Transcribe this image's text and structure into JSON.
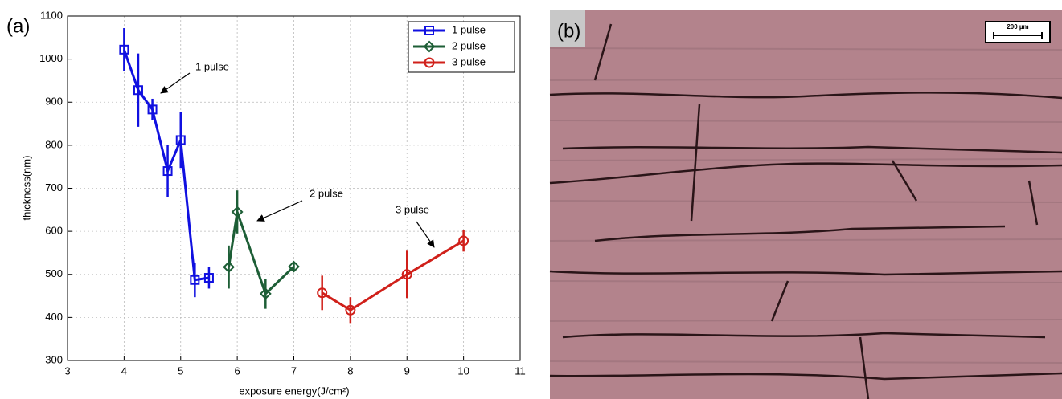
{
  "chart_data": {
    "type": "line",
    "panel_label": "(a)",
    "xlabel": "exposure energy(J/cm²)",
    "ylabel": "thickness(nm)",
    "xlim": [
      3,
      11
    ],
    "xticks": [
      3,
      4,
      5,
      6,
      7,
      8,
      9,
      10,
      11
    ],
    "ylim": [
      300,
      1100
    ],
    "yticks": [
      300,
      400,
      500,
      600,
      700,
      800,
      900,
      1000,
      1100
    ],
    "grid": true,
    "legend": "upper right",
    "series": [
      {
        "name": "1 pulse",
        "color": "#1010e0",
        "marker": "square",
        "x": [
          4,
          4.25,
          4.5,
          4.77,
          5,
          5.25,
          5.5
        ],
        "values": [
          1022,
          928,
          883,
          740,
          812,
          487,
          492
        ],
        "errors": [
          50,
          85,
          25,
          60,
          65,
          40,
          25
        ]
      },
      {
        "name": "2 pulse",
        "color": "#1d5e36",
        "marker": "diamond",
        "x": [
          5.85,
          6,
          6.5,
          7
        ],
        "values": [
          517,
          645,
          455,
          518
        ],
        "errors": [
          50,
          50,
          35,
          10
        ]
      },
      {
        "name": "3 pulse",
        "color": "#d0201a",
        "marker": "circle",
        "x": [
          7.5,
          8,
          9,
          10
        ],
        "values": [
          457,
          417,
          500,
          578
        ],
        "errors": [
          40,
          30,
          55,
          25
        ]
      }
    ],
    "annotations": [
      "1 pulse",
      "2 pulse",
      "3 pulse"
    ]
  },
  "micrograph": {
    "panel_label": "(b)",
    "scale_bar": "200 µm"
  }
}
